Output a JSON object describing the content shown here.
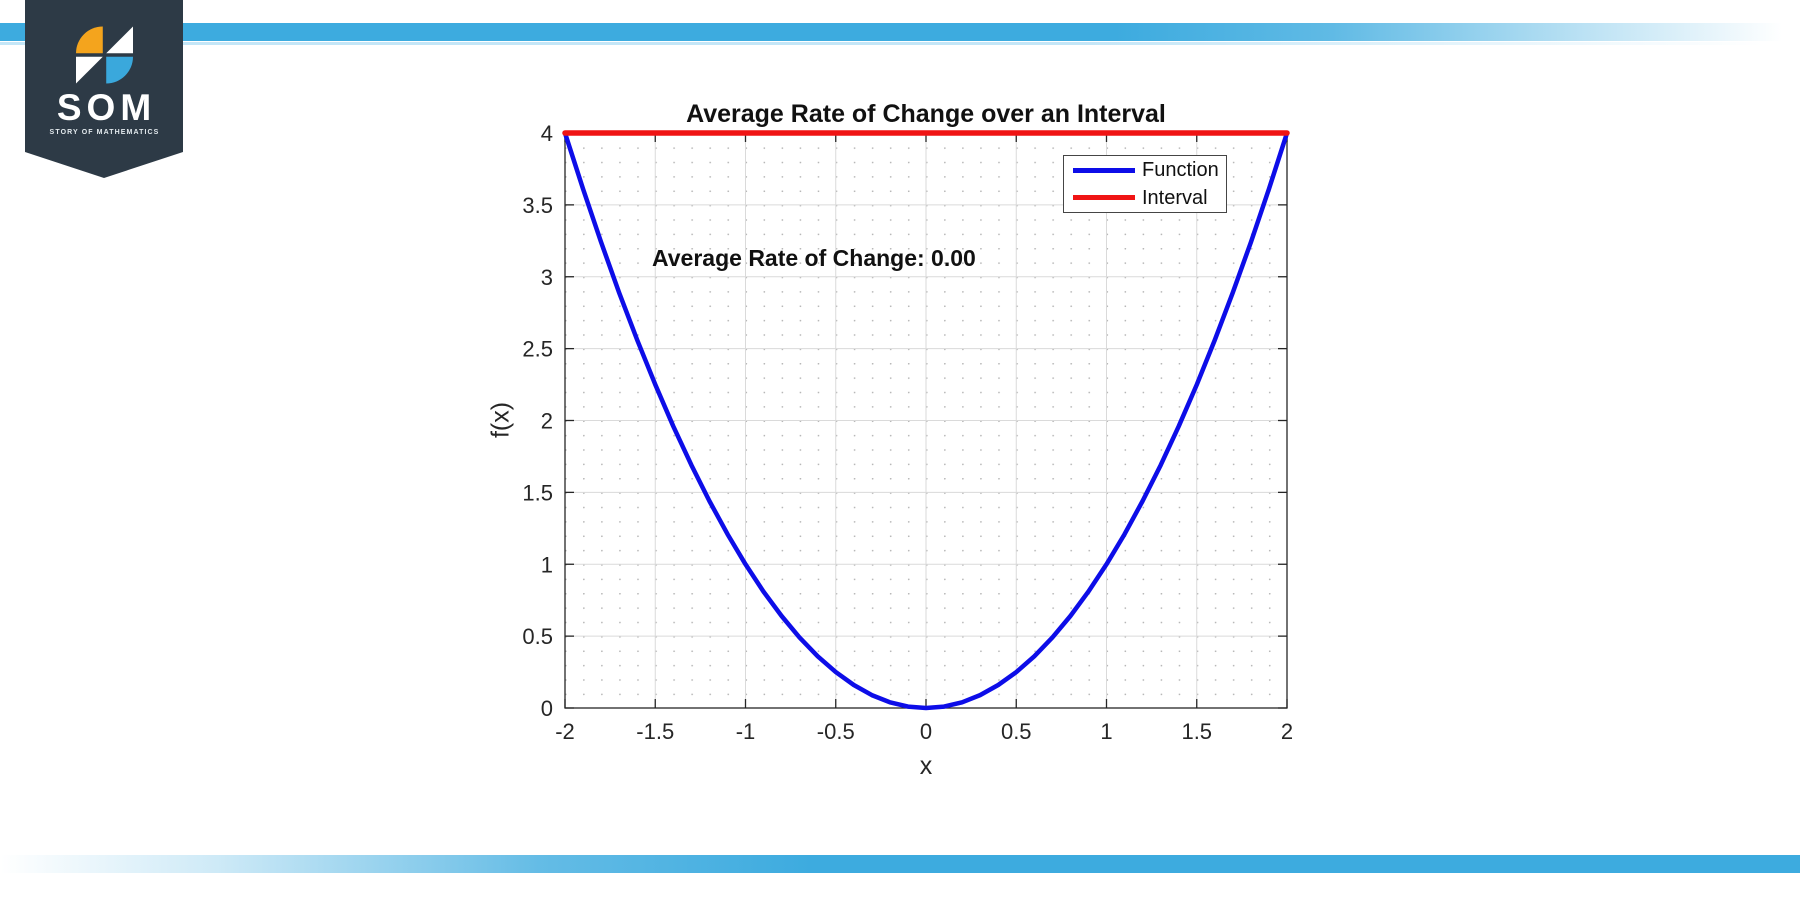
{
  "branding": {
    "logo": {
      "text": "SOM",
      "tagline": "STORY OF MATHEMATICS",
      "bg_color": "#2d3a46",
      "orange": "#f4a41d",
      "blue": "#3aa8dc"
    },
    "top_bar_color": "#3dabdf",
    "bottom_bar_color": "#3dabdf"
  },
  "chart_data": {
    "type": "line",
    "title": "Average Rate of Change over an Interval",
    "xlabel": "x",
    "ylabel": "f(x)",
    "xlim": [
      -2,
      2
    ],
    "ylim": [
      0,
      4
    ],
    "x_ticks": [
      -2,
      -1.5,
      -1,
      -0.5,
      0,
      0.5,
      1,
      1.5,
      2
    ],
    "x_tick_labels": [
      "-2",
      "-1.5",
      "-1",
      "-0.5",
      "0",
      "0.5",
      "1",
      "1.5",
      "2"
    ],
    "y_ticks": [
      0,
      0.5,
      1,
      1.5,
      2,
      2.5,
      3,
      3.5,
      4
    ],
    "y_tick_labels": [
      "0",
      "0.5",
      "1",
      "1.5",
      "2",
      "2.5",
      "3",
      "3.5",
      "4"
    ],
    "minor_grid_step": 0.1,
    "grid": "major light solid, minor dotted, box on, ticks inward",
    "axes_color": "#262626",
    "major_grid_color": "#dadada",
    "minor_grid_color": "#9c9c9c",
    "annotation": {
      "text": "Average Rate of Change: 0.00",
      "x": -1.52,
      "y": 3.1
    },
    "legend": {
      "position": "top-right",
      "entries": [
        {
          "label": "Function",
          "color": "#0d0de8"
        },
        {
          "label": "Interval",
          "color": "#f01414"
        }
      ]
    },
    "series": [
      {
        "name": "Function",
        "color": "#0d0de8",
        "line_width": 4.5,
        "x": [
          -2,
          -1.9,
          -1.8,
          -1.7,
          -1.6,
          -1.5,
          -1.4,
          -1.3,
          -1.2,
          -1.1,
          -1,
          -0.9,
          -0.8,
          -0.7,
          -0.6,
          -0.5,
          -0.4,
          -0.3,
          -0.2,
          -0.1,
          0,
          0.1,
          0.2,
          0.3,
          0.4,
          0.5,
          0.6,
          0.7,
          0.8,
          0.9,
          1,
          1.1,
          1.2,
          1.3,
          1.4,
          1.5,
          1.6,
          1.7,
          1.8,
          1.9,
          2
        ],
        "y": [
          4,
          3.61,
          3.24,
          2.89,
          2.56,
          2.25,
          1.96,
          1.69,
          1.44,
          1.21,
          1,
          0.81,
          0.64,
          0.49,
          0.36,
          0.25,
          0.16,
          0.09,
          0.04,
          0.01,
          0,
          0.01,
          0.04,
          0.09,
          0.16,
          0.25,
          0.36,
          0.49,
          0.64,
          0.81,
          1,
          1.21,
          1.44,
          1.69,
          1.96,
          2.25,
          2.56,
          2.89,
          3.24,
          3.61,
          4
        ]
      },
      {
        "name": "Interval",
        "color": "#f01414",
        "line_width": 5.5,
        "x": [
          -2,
          2
        ],
        "y": [
          4,
          4
        ]
      }
    ]
  }
}
